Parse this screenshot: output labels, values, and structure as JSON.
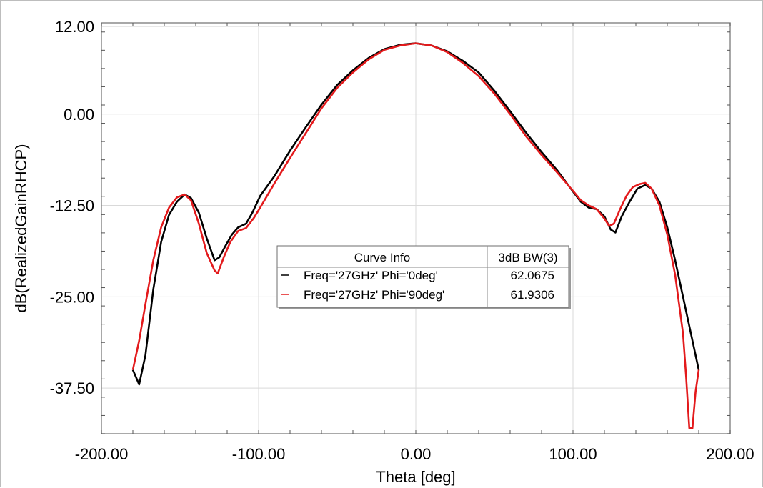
{
  "chart_data": {
    "type": "line",
    "xlabel": "Theta [deg]",
    "ylabel": "dB(RealizedGainRHCP)",
    "xlim": [
      -200,
      200
    ],
    "ylim": [
      -43.75,
      12.5
    ],
    "x_ticks": [
      "-200.00",
      "-100.00",
      "0.00",
      "100.00",
      "200.00"
    ],
    "x_tick_values": [
      -200,
      -100,
      0,
      100,
      200
    ],
    "y_ticks": [
      "12.00",
      "0.00",
      "-12.50",
      "-25.00",
      "-37.50"
    ],
    "y_tick_values": [
      12,
      0,
      -12.5,
      -25,
      -37.5
    ],
    "grid": true,
    "legend": {
      "placement": "center",
      "header": [
        "Curve Info",
        "3dB BW(3)"
      ],
      "rows": [
        {
          "name": "Freq='27GHz' Phi='0deg'",
          "value": "62.0675",
          "color": "#000000"
        },
        {
          "name": "Freq='27GHz' Phi='90deg'",
          "value": "61.9306",
          "color": "#e31a1c"
        }
      ]
    },
    "series": [
      {
        "name": "Freq='27GHz' Phi='0deg'",
        "color": "#000000",
        "x": [
          -180,
          -176,
          -172,
          -167,
          -162,
          -157,
          -152,
          -147,
          -143,
          -138,
          -133,
          -128,
          -125,
          -121,
          -117,
          -113,
          -108,
          -104,
          -99,
          -90,
          -80,
          -70,
          -60,
          -50,
          -40,
          -30,
          -20,
          -10,
          0,
          10,
          20,
          30,
          40,
          50,
          60,
          70,
          80,
          90,
          100,
          105,
          110,
          115,
          120,
          124,
          127,
          131,
          136,
          141,
          146,
          150,
          155,
          160,
          165,
          170,
          175,
          180
        ],
        "y": [
          -35.0,
          -37.0,
          -33.0,
          -24.0,
          -17.5,
          -13.8,
          -12.0,
          -11.0,
          -11.5,
          -13.5,
          -17.0,
          -20.0,
          -19.6,
          -18.0,
          -16.5,
          -15.5,
          -15.0,
          -13.5,
          -11.2,
          -8.5,
          -5.0,
          -1.8,
          1.3,
          4.0,
          6.0,
          7.7,
          8.9,
          9.5,
          9.7,
          9.4,
          8.6,
          7.3,
          5.7,
          3.2,
          0.4,
          -2.5,
          -5.2,
          -7.7,
          -10.6,
          -12.0,
          -12.8,
          -13.0,
          -14.0,
          -15.8,
          -16.2,
          -14.0,
          -12.0,
          -10.2,
          -9.7,
          -10.2,
          -12.0,
          -15.5,
          -20.0,
          -25.0,
          -30.0,
          -35.0
        ]
      },
      {
        "name": "Freq='27GHz' Phi='90deg'",
        "color": "#e31a1c",
        "x": [
          -180,
          -176,
          -172,
          -167,
          -162,
          -157,
          -152,
          -147,
          -143,
          -138,
          -133,
          -128,
          -126,
          -122,
          -118,
          -113,
          -108,
          -103,
          -99,
          -90,
          -80,
          -70,
          -60,
          -50,
          -40,
          -30,
          -20,
          -10,
          0,
          10,
          20,
          30,
          40,
          50,
          60,
          70,
          80,
          90,
          100,
          105,
          110,
          115,
          120,
          123,
          126,
          130,
          134,
          138,
          142,
          146,
          150,
          155,
          160,
          165,
          170,
          172,
          174,
          176,
          178,
          180
        ],
        "y": [
          -35.0,
          -31.0,
          -26.0,
          -20.0,
          -15.5,
          -12.8,
          -11.4,
          -11.0,
          -11.8,
          -15.0,
          -19.0,
          -21.4,
          -21.8,
          -19.5,
          -17.5,
          -16.0,
          -15.6,
          -14.2,
          -12.8,
          -9.5,
          -6.0,
          -2.6,
          0.8,
          3.6,
          5.7,
          7.5,
          8.8,
          9.4,
          9.7,
          9.4,
          8.5,
          7.0,
          5.2,
          2.8,
          0.0,
          -3.0,
          -5.6,
          -8.0,
          -10.5,
          -11.8,
          -12.5,
          -13.0,
          -14.3,
          -15.3,
          -15.0,
          -13.0,
          -11.2,
          -10.0,
          -9.6,
          -9.4,
          -10.2,
          -12.5,
          -16.5,
          -22.0,
          -30.0,
          -36.0,
          -43.0,
          -43.0,
          -38.0,
          -35.0
        ]
      }
    ]
  }
}
